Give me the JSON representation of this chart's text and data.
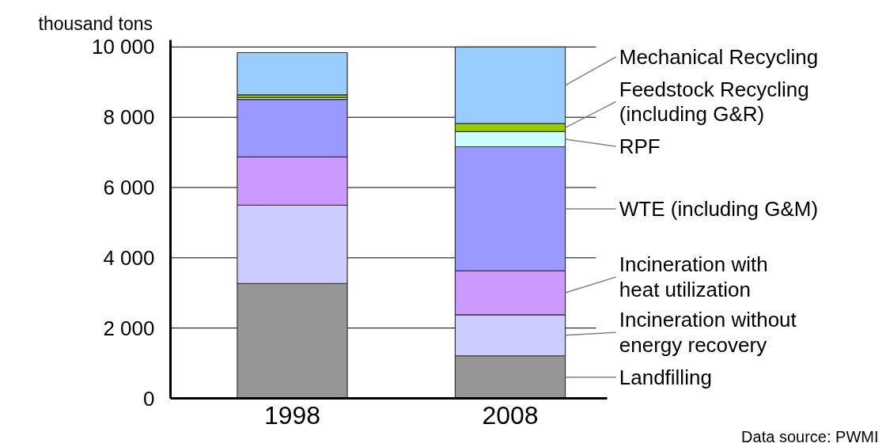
{
  "chart_data": {
    "type": "bar",
    "stacked": true,
    "ylabel": "thousand tons",
    "categories": [
      "1998",
      "2008"
    ],
    "series": [
      {
        "name": "Landfilling",
        "color": "#969696",
        "values": [
          3270,
          1210
        ]
      },
      {
        "name": "Incineration without\nenergy recovery",
        "color": "#ccccff",
        "values": [
          2230,
          1170
        ]
      },
      {
        "name": "Incineration with\nheat utilization",
        "color": "#cc99ff",
        "values": [
          1370,
          1250
        ]
      },
      {
        "name": "WTE (including G&M)",
        "color": "#9999ff",
        "values": [
          1640,
          3530
        ]
      },
      {
        "name": "RPF",
        "color": "#ccffff",
        "values": [
          50,
          430
        ]
      },
      {
        "name": "Feedstock Recycling\n(including G&R)",
        "color": "#99cc00",
        "values": [
          80,
          230
        ]
      },
      {
        "name": "Mechanical Recycling",
        "color": "#99ccff",
        "values": [
          1200,
          2180
        ]
      }
    ],
    "ylim": [
      0,
      10200
    ],
    "yticks": [
      0,
      {
        "value": 2000,
        "label": "2 000"
      },
      {
        "value": 4000,
        "label": "4 000"
      },
      {
        "value": 6000,
        "label": "6 000"
      },
      {
        "value": 8000,
        "label": "8 000"
      },
      {
        "value": 10000,
        "label": "10 000"
      }
    ],
    "grid": "y",
    "annotations": [
      "Data source: PWMI"
    ]
  }
}
